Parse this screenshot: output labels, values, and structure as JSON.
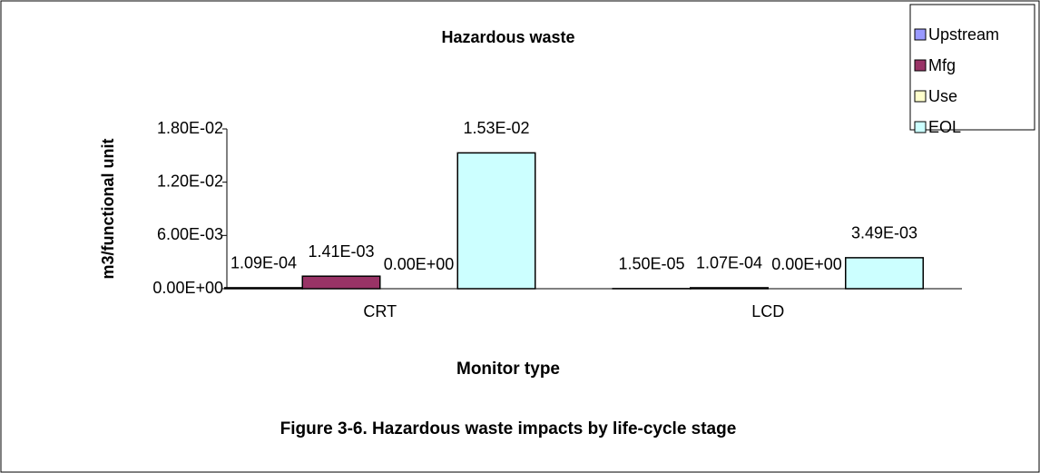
{
  "chart_data": {
    "type": "bar",
    "title": "Hazardous waste",
    "caption": "Figure 3-6.  Hazardous waste impacts by life-cycle stage",
    "x_label": "Monitor type",
    "y_label": "m3/functional unit",
    "categories": [
      "CRT",
      "LCD"
    ],
    "series": [
      {
        "name": "Upstream",
        "color": "#9999ff",
        "values": [
          0.000109,
          1.5e-05
        ],
        "value_labels": [
          "1.09E-04",
          "1.50E-05"
        ]
      },
      {
        "name": "Mfg",
        "color": "#993366",
        "values": [
          0.00141,
          0.000107
        ],
        "value_labels": [
          "1.41E-03",
          "1.07E-04"
        ]
      },
      {
        "name": "Use",
        "color": "#ffffcc",
        "values": [
          0,
          0
        ],
        "value_labels": [
          "0.00E+00",
          "0.00E+00"
        ]
      },
      {
        "name": "EOL",
        "color": "#ccffff",
        "values": [
          0.0153,
          0.00349
        ],
        "value_labels": [
          "1.53E-02",
          "3.49E-03"
        ]
      }
    ],
    "ylim": [
      0,
      0.018
    ],
    "yticks": [
      {
        "value": 0,
        "label": "0.00E+00"
      },
      {
        "value": 0.006,
        "label": "6.00E-03"
      },
      {
        "value": 0.012,
        "label": "1.20E-02"
      },
      {
        "value": 0.018,
        "label": "1.80E-02"
      }
    ],
    "grid": false,
    "legend": "top-right"
  }
}
